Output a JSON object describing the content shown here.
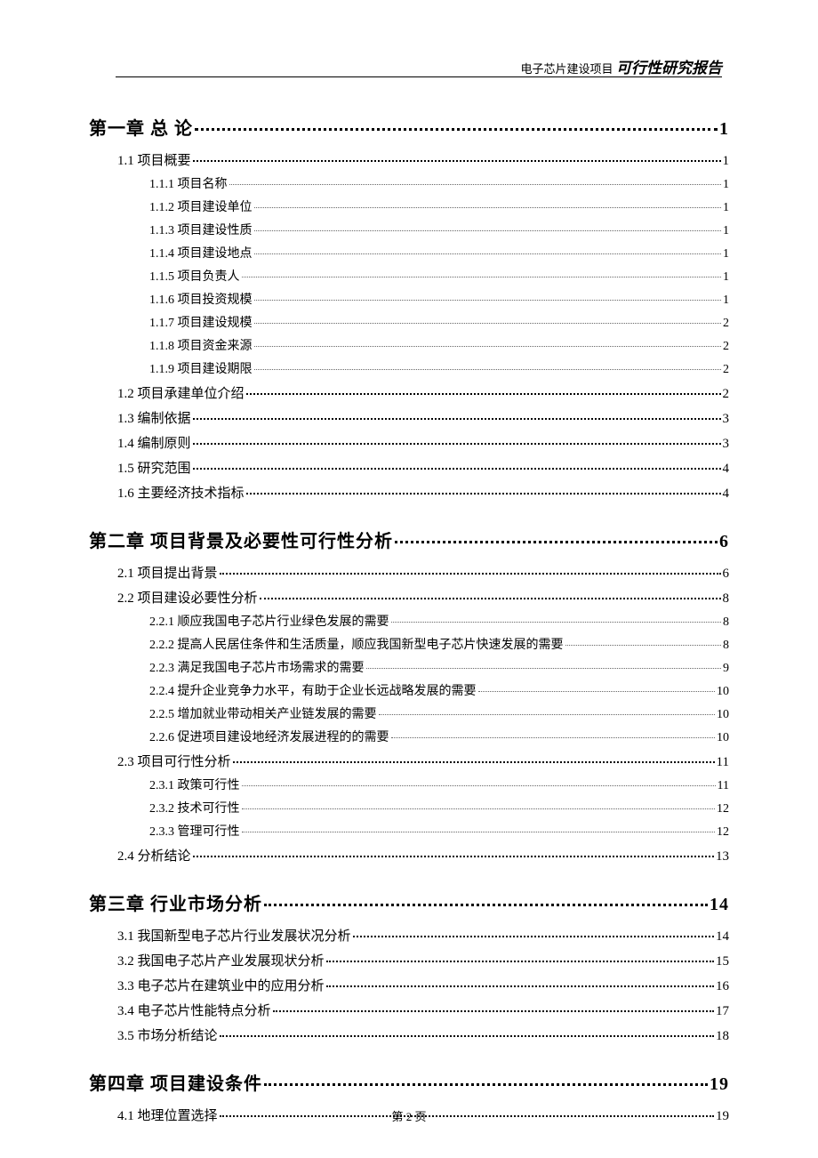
{
  "header": {
    "prefix": "电子芯片建设项目",
    "title": "可行性研究报告"
  },
  "footer": {
    "text": "第 2 页"
  },
  "toc": [
    {
      "level": 1,
      "label": "第一章 总 论",
      "page": "1"
    },
    {
      "level": 2,
      "label": "1.1 项目概要",
      "page": "1"
    },
    {
      "level": 3,
      "label": "1.1.1 项目名称",
      "page": "1"
    },
    {
      "level": 3,
      "label": "1.1.2 项目建设单位",
      "page": "1"
    },
    {
      "level": 3,
      "label": "1.1.3 项目建设性质",
      "page": "1"
    },
    {
      "level": 3,
      "label": "1.1.4 项目建设地点",
      "page": "1"
    },
    {
      "level": 3,
      "label": "1.1.5 项目负责人",
      "page": "1"
    },
    {
      "level": 3,
      "label": "1.1.6 项目投资规模",
      "page": "1"
    },
    {
      "level": 3,
      "label": "1.1.7 项目建设规模",
      "page": "2"
    },
    {
      "level": 3,
      "label": "1.1.8 项目资金来源",
      "page": "2"
    },
    {
      "level": 3,
      "label": "1.1.9 项目建设期限",
      "page": "2"
    },
    {
      "level": 2,
      "label": "1.2 项目承建单位介绍",
      "page": "2"
    },
    {
      "level": 2,
      "label": "1.3 编制依据",
      "page": "3"
    },
    {
      "level": 2,
      "label": "1.4 编制原则",
      "page": "3"
    },
    {
      "level": 2,
      "label": "1.5 研究范围",
      "page": "4"
    },
    {
      "level": 2,
      "label": "1.6 主要经济技术指标",
      "page": "4"
    },
    {
      "level": 1,
      "label": "第二章 项目背景及必要性可行性分析",
      "page": "6"
    },
    {
      "level": 2,
      "label": "2.1 项目提出背景",
      "page": "6"
    },
    {
      "level": 2,
      "label": "2.2 项目建设必要性分析",
      "page": "8"
    },
    {
      "level": 3,
      "label": "2.2.1 顺应我国电子芯片行业绿色发展的需要",
      "page": "8"
    },
    {
      "level": 3,
      "label": "2.2.2 提高人民居住条件和生活质量，顺应我国新型电子芯片快速发展的需要",
      "page": "8"
    },
    {
      "level": 3,
      "label": "2.2.3 满足我国电子芯片市场需求的需要",
      "page": "9"
    },
    {
      "level": 3,
      "label": "2.2.4 提升企业竞争力水平，有助于企业长远战略发展的需要",
      "page": "10"
    },
    {
      "level": 3,
      "label": "2.2.5 增加就业带动相关产业链发展的需要",
      "page": "10"
    },
    {
      "level": 3,
      "label": "2.2.6 促进项目建设地经济发展进程的的需要",
      "page": "10"
    },
    {
      "level": 2,
      "label": "2.3 项目可行性分析",
      "page": "11"
    },
    {
      "level": 3,
      "label": "2.3.1 政策可行性",
      "page": "11"
    },
    {
      "level": 3,
      "label": "2.3.2 技术可行性",
      "page": "12"
    },
    {
      "level": 3,
      "label": "2.3.3 管理可行性",
      "page": "12"
    },
    {
      "level": 2,
      "label": "2.4 分析结论",
      "page": "13"
    },
    {
      "level": 1,
      "label": "第三章 行业市场分析",
      "page": "14"
    },
    {
      "level": 2,
      "label": "3.1 我国新型电子芯片行业发展状况分析",
      "page": "14"
    },
    {
      "level": 2,
      "label": "3.2 我国电子芯片产业发展现状分析",
      "page": "15"
    },
    {
      "level": 2,
      "label": "3.3 电子芯片在建筑业中的应用分析",
      "page": "16"
    },
    {
      "level": 2,
      "label": "3.4 电子芯片性能特点分析",
      "page": "17"
    },
    {
      "level": 2,
      "label": "3.5 市场分析结论",
      "page": "18"
    },
    {
      "level": 1,
      "label": "第四章 项目建设条件",
      "page": "19"
    },
    {
      "level": 2,
      "label": "4.1 地理位置选择",
      "page": "19"
    }
  ]
}
